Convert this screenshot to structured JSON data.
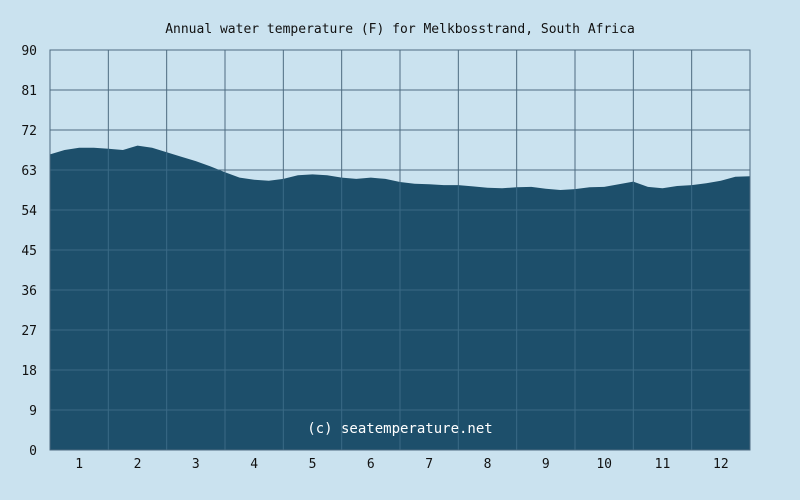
{
  "chart_data": {
    "type": "area",
    "title": "Annual water temperature (F) for Melkbosstrand, South Africa",
    "xlabel": "",
    "ylabel": "",
    "x_ticks": [
      "1",
      "2",
      "3",
      "4",
      "5",
      "6",
      "7",
      "8",
      "9",
      "10",
      "11",
      "12"
    ],
    "y_ticks": [
      "0",
      "9",
      "18",
      "27",
      "36",
      "45",
      "54",
      "63",
      "72",
      "81",
      "90"
    ],
    "ylim": [
      0,
      90
    ],
    "xlim": [
      0.5,
      12.5
    ],
    "grid": true,
    "watermark": "(c) seatemperature.net",
    "series": [
      {
        "x": [
          0.5,
          0.75,
          1.0,
          1.25,
          1.5,
          1.75,
          2.0,
          2.25,
          2.5,
          2.75,
          3.0,
          3.25,
          3.5,
          3.75,
          4.0,
          4.25,
          4.5,
          4.75,
          5.0,
          5.25,
          5.5,
          5.75,
          6.0,
          6.25,
          6.5,
          6.75,
          7.0,
          7.25,
          7.5,
          7.75,
          8.0,
          8.25,
          8.5,
          8.75,
          9.0,
          9.25,
          9.5,
          9.75,
          10.0,
          10.25,
          10.5,
          10.75,
          11.0,
          11.25,
          11.5,
          11.75,
          12.0,
          12.25,
          12.5
        ],
        "values": [
          66.5,
          67.5,
          68.0,
          68.0,
          67.8,
          67.5,
          68.5,
          68.0,
          67.0,
          66.0,
          65.0,
          63.8,
          62.5,
          61.3,
          60.8,
          60.6,
          61.0,
          61.8,
          62.0,
          61.8,
          61.3,
          61.0,
          61.3,
          61.0,
          60.3,
          59.9,
          59.8,
          59.6,
          59.6,
          59.3,
          59.0,
          58.9,
          59.1,
          59.2,
          58.8,
          58.5,
          58.7,
          59.1,
          59.2,
          59.8,
          60.4,
          59.2,
          58.9,
          59.4,
          59.6,
          60.0,
          60.6,
          61.5,
          61.6
        ]
      }
    ],
    "colors": {
      "background": "#cae2ef",
      "area": "#1d4f6b",
      "grid": "#4d6b80",
      "grid_over_area": "#3a6a86"
    }
  }
}
